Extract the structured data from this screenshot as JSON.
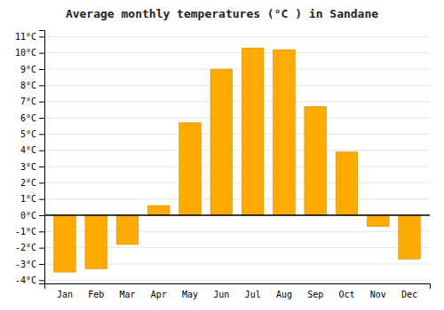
{
  "chart_data": {
    "type": "bar",
    "title": "Average monthly temperatures (°C ) in Sandane",
    "categories": [
      "Jan",
      "Feb",
      "Mar",
      "Apr",
      "May",
      "Jun",
      "Jul",
      "Aug",
      "Sep",
      "Oct",
      "Nov",
      "Dec"
    ],
    "values": [
      -3.5,
      -3.3,
      -1.8,
      0.6,
      5.7,
      9.0,
      10.3,
      10.2,
      6.7,
      3.9,
      -0.7,
      -2.7
    ],
    "color": "#FFAA00",
    "ylim": [
      -4.2,
      11.4
    ],
    "yticks": [
      {
        "value": -4,
        "label": "-4°C"
      },
      {
        "value": -3,
        "label": "-3°C"
      },
      {
        "value": -2,
        "label": "-2°C"
      },
      {
        "value": -1,
        "label": "-1°C"
      },
      {
        "value": 0,
        "label": "0°C"
      },
      {
        "value": 1,
        "label": "1°C"
      },
      {
        "value": 2,
        "label": "2°C"
      },
      {
        "value": 3,
        "label": "3°C"
      },
      {
        "value": 4,
        "label": "4°C"
      },
      {
        "value": 5,
        "label": "5°C"
      },
      {
        "value": 6,
        "label": "6°C"
      },
      {
        "value": 7,
        "label": "7°C"
      },
      {
        "value": 8,
        "label": "8°C"
      },
      {
        "value": 9,
        "label": "9°C"
      },
      {
        "value": 10,
        "label": "10°C"
      },
      {
        "value": 11,
        "label": "11°C"
      }
    ],
    "grid": true
  }
}
